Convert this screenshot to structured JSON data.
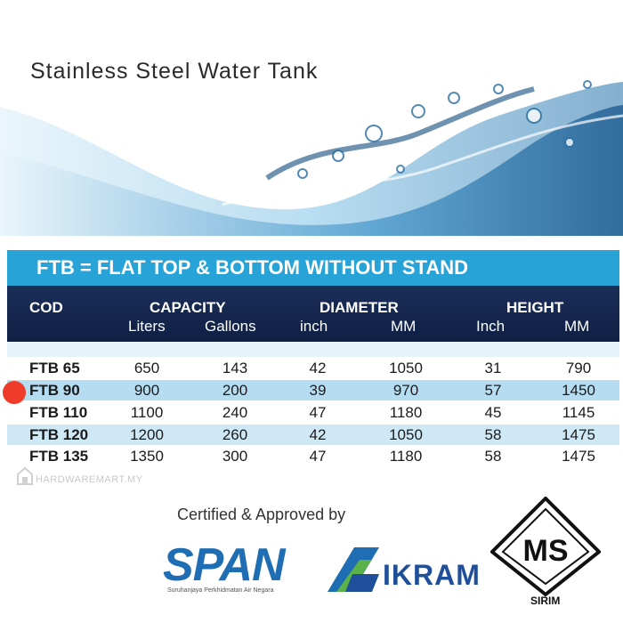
{
  "hero": {
    "title": "Stainless Steel Water Tank"
  },
  "table": {
    "title": "FTB  = FLAT TOP & BOTTOM WITHOUT STAND",
    "headers": {
      "cod": "COD",
      "capacity": "CAPACITY",
      "diameter": "DIAMETER",
      "height": "HEIGHT",
      "liters": "Liters",
      "gallons": "Gallons",
      "inch": "inch",
      "mm": "MM",
      "height_inch": "Inch",
      "height_mm": "MM"
    },
    "rows": [
      {
        "cod": "FTB 65",
        "liters": "650",
        "gallons": "143",
        "dia_inch": "42",
        "dia_mm": "1050",
        "h_inch": "31",
        "h_mm": "790"
      },
      {
        "cod": "FTB 90",
        "liters": "900",
        "gallons": "200",
        "dia_inch": "39",
        "dia_mm": "970",
        "h_inch": "57",
        "h_mm": "1450"
      },
      {
        "cod": "FTB 110",
        "liters": "1100",
        "gallons": "240",
        "dia_inch": "47",
        "dia_mm": "1180",
        "h_inch": "45",
        "h_mm": "1145"
      },
      {
        "cod": "FTB 120",
        "liters": "1200",
        "gallons": "260",
        "dia_inch": "42",
        "dia_mm": "1050",
        "h_inch": "58",
        "h_mm": "1475"
      },
      {
        "cod": "FTB 135",
        "liters": "1350",
        "gallons": "300",
        "dia_inch": "47",
        "dia_mm": "1180",
        "h_inch": "58",
        "h_mm": "1475"
      }
    ]
  },
  "watermark": {
    "text": "HARDWAREMART.MY"
  },
  "certification": {
    "label": "Certified & Approved by",
    "span_logo": "SPAN",
    "span_sub": "Suruhanjaya Perkhidmatan Air Negara",
    "ikram_logo": "IKRAM",
    "ms_logo": "MS",
    "sirim_label": "SIRIM"
  },
  "colors": {
    "title_bar": "#28a3d8",
    "header_bar": "#1b2f59",
    "highlight_row": "#b6dcf2",
    "marker": "#ef3b2a"
  }
}
